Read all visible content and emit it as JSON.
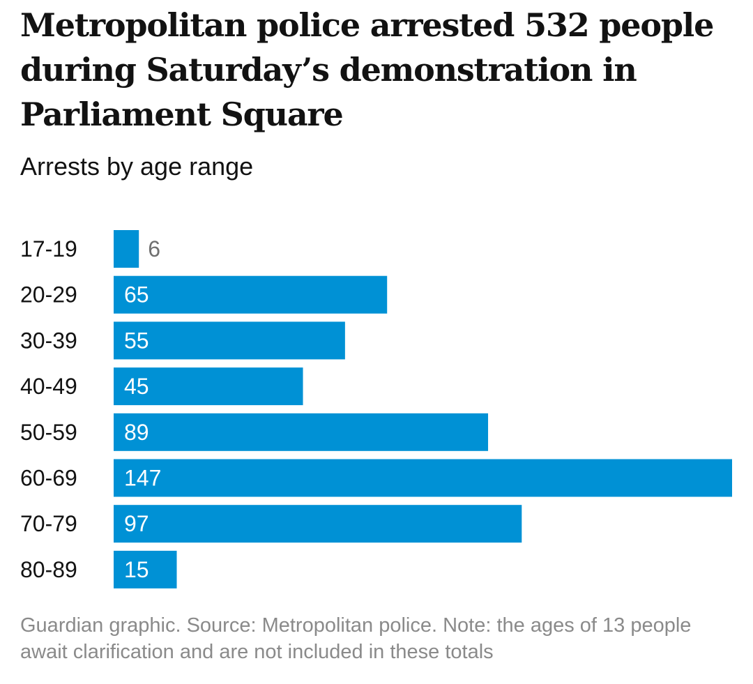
{
  "title": "Metropolitan police arrested 532 people during Saturday’s demonstration in Parliament Square",
  "subtitle": "Arrests by age range",
  "footer": "Guardian graphic. Source: Metropolitan police. Note: the ages of 13 people await clarification and are not included in these totals",
  "chart_data": {
    "type": "bar",
    "orientation": "horizontal",
    "title": "Metropolitan police arrested 532 people during Saturday’s demonstration in Parliament Square",
    "subtitle": "Arrests by age range",
    "categories": [
      "17-19",
      "20-29",
      "30-39",
      "40-49",
      "50-59",
      "60-69",
      "70-79",
      "80-89"
    ],
    "values": [
      6,
      65,
      55,
      45,
      89,
      147,
      97,
      15
    ],
    "xlim": [
      0,
      147
    ],
    "grid": false,
    "bar_color": "#0091d5",
    "label_color_inside": "#ffffff",
    "label_color_outside": "#707070"
  }
}
